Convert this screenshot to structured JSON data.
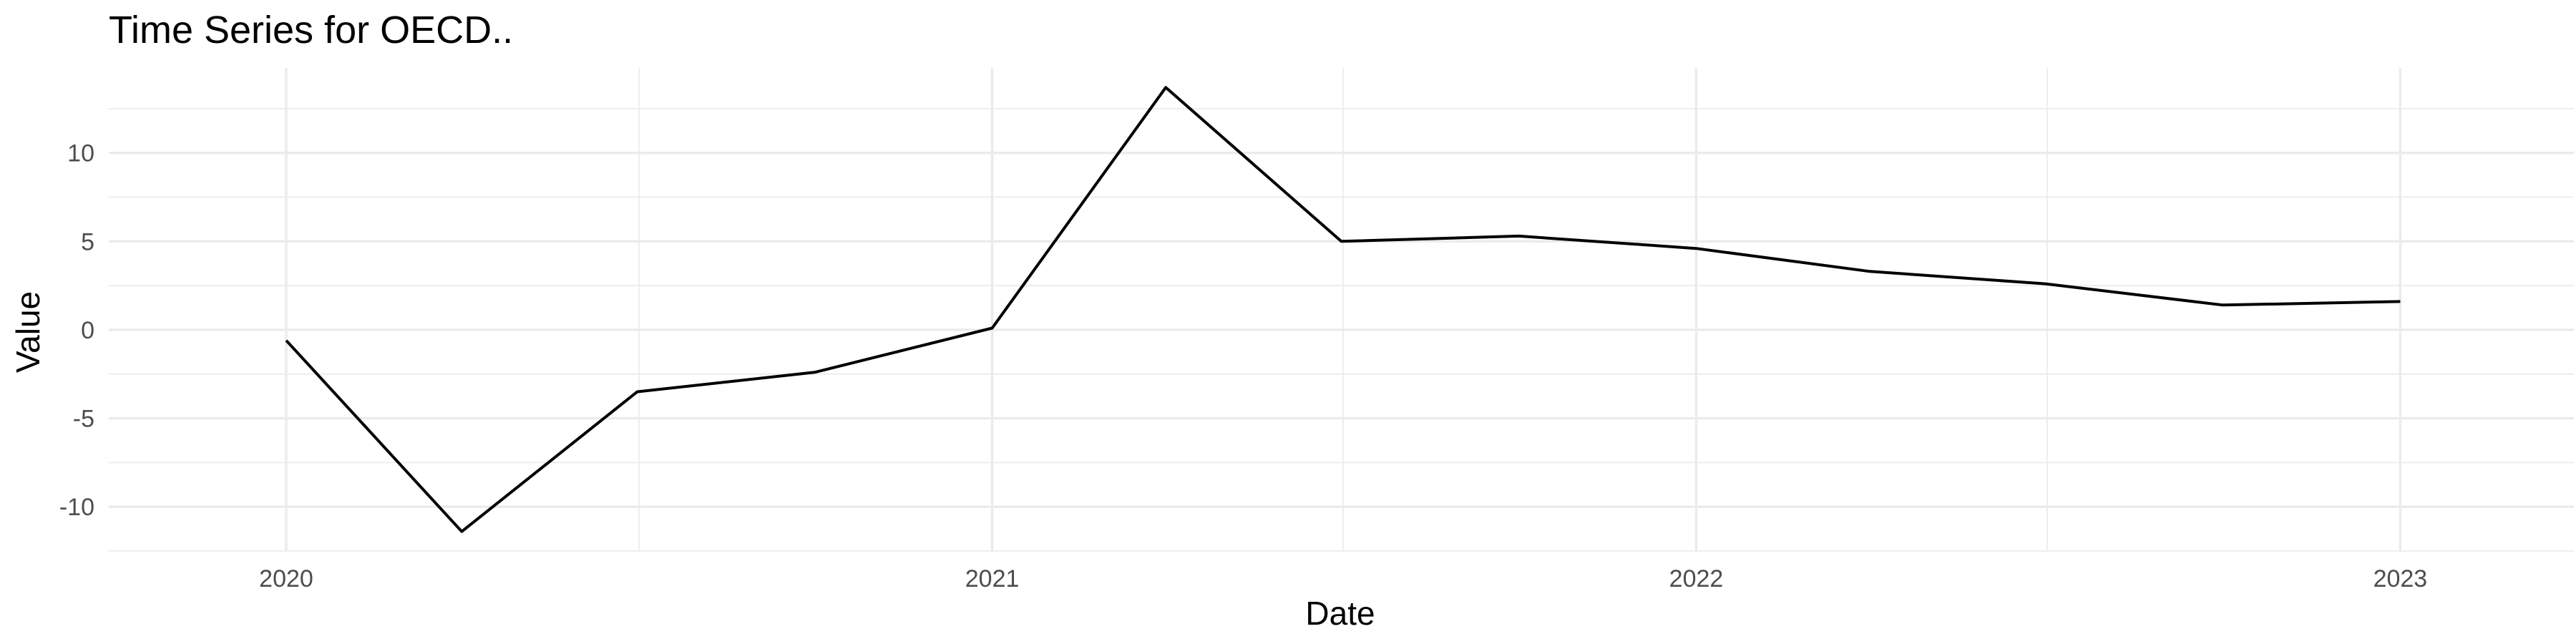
{
  "chart_data": {
    "type": "line",
    "title": "Time Series for OECD..",
    "xlabel": "Date",
    "ylabel": "Value",
    "x_ticks": [
      "2020",
      "2021",
      "2022",
      "2023"
    ],
    "y_ticks": [
      -10,
      -5,
      0,
      5,
      10
    ],
    "x_range": [
      "2019-10-01",
      "2023-04-01"
    ],
    "ylim": [
      -12.5,
      14.8
    ],
    "grid": true,
    "legend": "none",
    "series": [
      {
        "color": "#000000",
        "points": [
          {
            "x": "2020-01-01",
            "y": -0.6
          },
          {
            "x": "2020-04-01",
            "y": -11.4
          },
          {
            "x": "2020-07-01",
            "y": -3.5
          },
          {
            "x": "2020-10-01",
            "y": -2.4
          },
          {
            "x": "2021-01-01",
            "y": 0.1
          },
          {
            "x": "2021-04-01",
            "y": 13.7
          },
          {
            "x": "2021-07-01",
            "y": 5.0
          },
          {
            "x": "2021-10-01",
            "y": 5.3
          },
          {
            "x": "2022-01-01",
            "y": 4.6
          },
          {
            "x": "2022-04-01",
            "y": 3.3
          },
          {
            "x": "2022-07-01",
            "y": 2.6
          },
          {
            "x": "2022-10-01",
            "y": 1.4
          },
          {
            "x": "2023-01-01",
            "y": 1.6
          }
        ]
      }
    ]
  }
}
